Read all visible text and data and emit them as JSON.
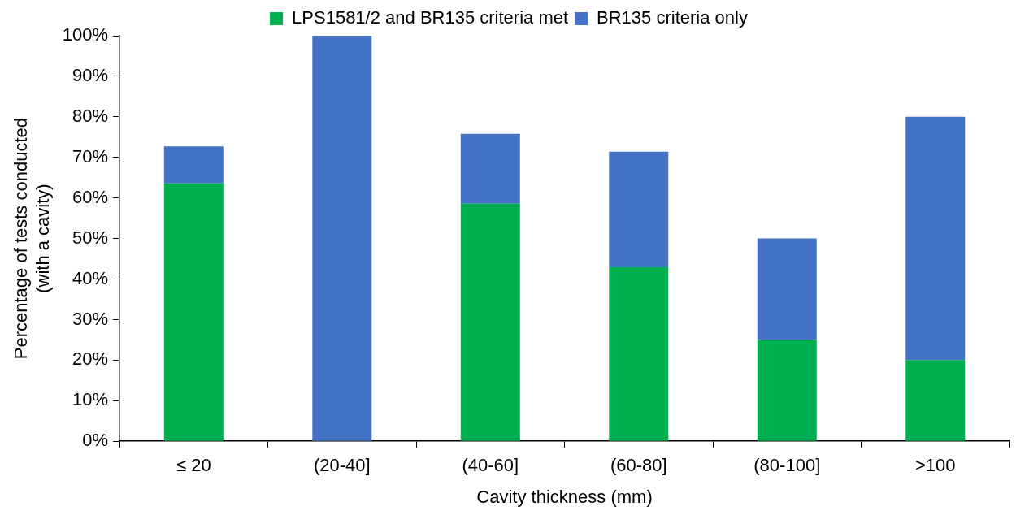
{
  "chart_data": {
    "type": "bar",
    "stacked": true,
    "xlabel": "Cavity thickness (mm)",
    "ylabel": "Percentage of tests conducted\n(with a cavity)",
    "categories": [
      "≤ 20",
      "(20-40]",
      "(40-60]",
      "(60-80]",
      "(80-100]",
      ">100"
    ],
    "series": [
      {
        "name": "LPS1581/2 and BR135 criteria met",
        "color": "#00b050",
        "values": [
          63.6,
          0,
          58.6,
          42.9,
          25,
          20
        ]
      },
      {
        "name": "BR135 criteria only",
        "color": "#4472c4",
        "values": [
          9.1,
          100,
          17.2,
          28.5,
          25,
          60
        ]
      }
    ],
    "ylim": [
      0,
      100
    ],
    "yticks": [
      {
        "value": 0,
        "label": "0%"
      },
      {
        "value": 10,
        "label": "10%"
      },
      {
        "value": 20,
        "label": "20%"
      },
      {
        "value": 30,
        "label": "30%"
      },
      {
        "value": 40,
        "label": "40%"
      },
      {
        "value": 50,
        "label": "50%"
      },
      {
        "value": 60,
        "label": "60%"
      },
      {
        "value": 70,
        "label": "70%"
      },
      {
        "value": 80,
        "label": "80%"
      },
      {
        "value": 90,
        "label": "90%"
      },
      {
        "value": 100,
        "label": "100%"
      }
    ],
    "grid": false,
    "legend": "top"
  }
}
